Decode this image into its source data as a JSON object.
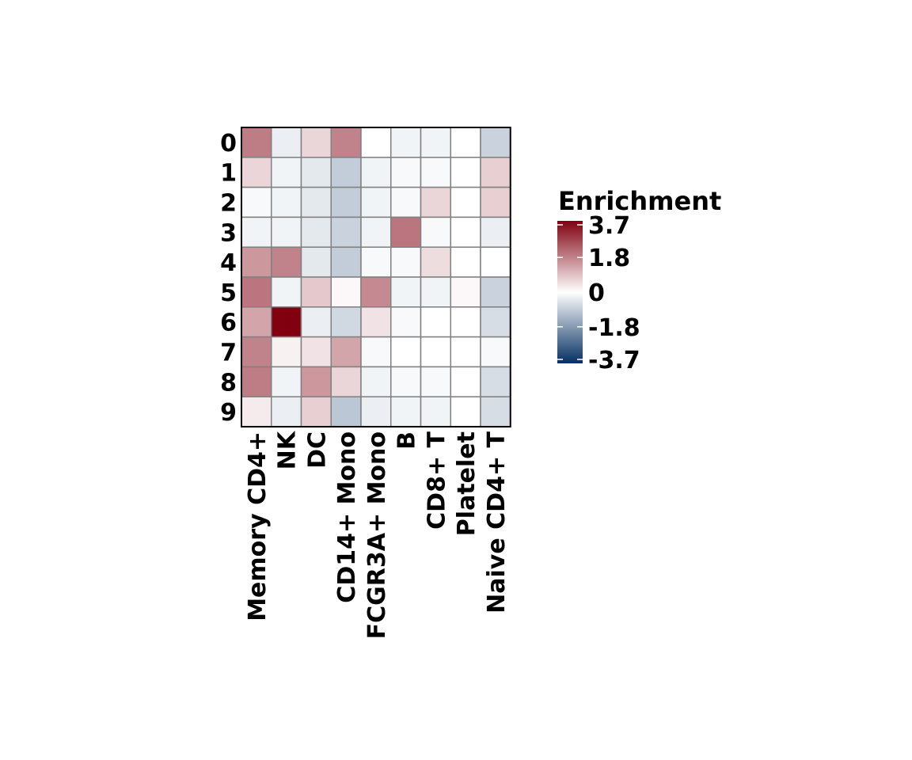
{
  "chart_data": {
    "type": "heatmap",
    "rows": [
      "0",
      "1",
      "2",
      "3",
      "4",
      "5",
      "6",
      "7",
      "8",
      "9"
    ],
    "columns": [
      "Memory CD4+",
      "NK",
      "DC",
      "CD14+ Mono",
      "FCGR3A+ Mono",
      "B",
      "CD8+ T",
      "Platelet",
      "Naive CD4+ T"
    ],
    "values": [
      [
        1.9,
        -0.3,
        0.6,
        1.8,
        0.0,
        -0.2,
        -0.2,
        0.0,
        -0.8
      ],
      [
        0.6,
        -0.2,
        -0.4,
        -0.9,
        -0.2,
        -0.1,
        -0.1,
        0.0,
        0.7
      ],
      [
        -0.1,
        -0.2,
        -0.4,
        -0.9,
        -0.2,
        -0.1,
        0.6,
        0.0,
        0.7
      ],
      [
        -0.2,
        -0.2,
        -0.4,
        -0.8,
        -0.2,
        2.0,
        -0.1,
        0.0,
        -0.3
      ],
      [
        1.5,
        1.8,
        -0.4,
        -0.9,
        -0.1,
        -0.1,
        0.5,
        0.0,
        0.0
      ],
      [
        2.0,
        -0.2,
        0.8,
        0.1,
        1.7,
        -0.2,
        -0.2,
        0.1,
        -0.8
      ],
      [
        1.3,
        3.7,
        -0.3,
        -0.7,
        0.4,
        -0.1,
        0.0,
        0.0,
        -0.6
      ],
      [
        1.8,
        0.2,
        0.4,
        1.3,
        -0.1,
        0.0,
        0.0,
        0.0,
        -0.1
      ],
      [
        1.9,
        -0.2,
        1.5,
        0.6,
        -0.2,
        -0.1,
        -0.1,
        0.0,
        -0.6
      ],
      [
        0.3,
        -0.3,
        0.7,
        -1.0,
        -0.3,
        -0.2,
        -0.2,
        0.0,
        -0.6
      ]
    ],
    "legend": {
      "title": "Enrichment",
      "ticks": [
        "3.7",
        "1.8",
        "0",
        "-1.8",
        "-3.7"
      ],
      "tick_values": [
        3.7,
        1.8,
        0,
        -1.8,
        -3.7
      ],
      "min": -3.7,
      "max": 3.7,
      "colors": {
        "low": "#053061",
        "mid": "#ffffff",
        "high": "#800010"
      },
      "placement": "right"
    },
    "grid": true,
    "cell_border_color": "#808080"
  }
}
